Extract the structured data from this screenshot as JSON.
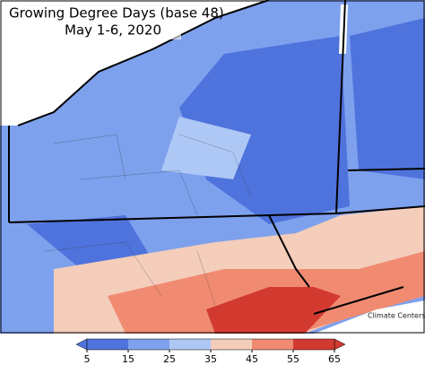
{
  "map": {
    "title": "Growing Degree Days (base 48)",
    "subtitle": "May 1-6, 2020",
    "credit": "Climate Centers"
  },
  "legend": {
    "ticks": [
      5,
      15,
      25,
      35,
      45,
      55,
      65
    ],
    "colors": [
      "#4f73dc",
      "#7ea1ee",
      "#aec8f6",
      "#f4cdbb",
      "#f08b72",
      "#d23a30"
    ]
  }
}
